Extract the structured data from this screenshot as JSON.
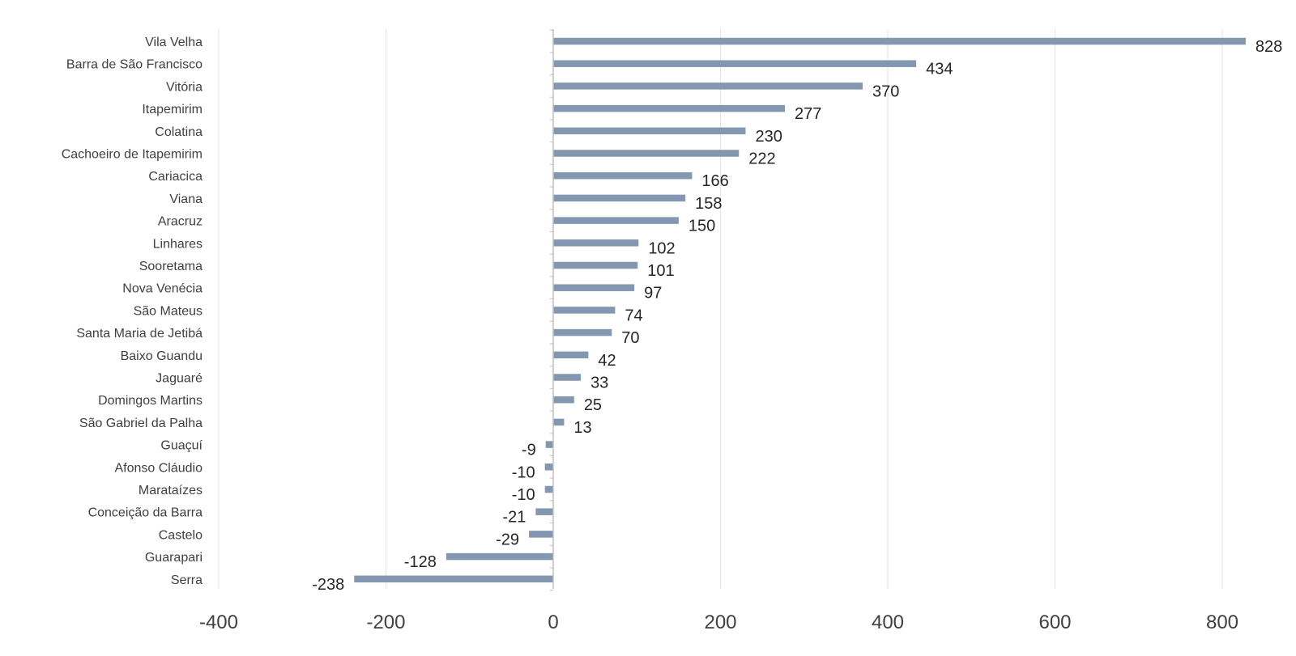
{
  "chart_data": {
    "type": "bar",
    "orientation": "horizontal",
    "title": "",
    "xlabel": "",
    "ylabel": "",
    "xlim": [
      -400,
      830
    ],
    "x_ticks": [
      -400,
      -200,
      0,
      200,
      400,
      600,
      800
    ],
    "x_tick_labels": [
      "-400",
      "-200",
      "0",
      "200",
      "400",
      "600",
      "800"
    ],
    "grid": "vertical",
    "legend": "none",
    "bar_color": "#8497b0",
    "categories": [
      "Vila Velha",
      "Barra de São Francisco",
      "Vitória",
      "Itapemirim",
      "Colatina",
      "Cachoeiro de Itapemirim",
      "Cariacica",
      "Viana",
      "Aracruz",
      "Linhares",
      "Sooretama",
      "Nova Venécia",
      "São Mateus",
      "Santa Maria de Jetibá",
      "Baixo Guandu",
      "Jaguaré",
      "Domingos Martins",
      "São Gabriel da Palha",
      "Guaçuí",
      "Afonso Cláudio",
      "Marataízes",
      "Conceição da Barra",
      "Castelo",
      "Guarapari",
      "Serra"
    ],
    "values": [
      828,
      434,
      370,
      277,
      230,
      222,
      166,
      158,
      150,
      102,
      101,
      97,
      74,
      70,
      42,
      33,
      25,
      13,
      -9,
      -10,
      -10,
      -21,
      -29,
      -128,
      -238
    ]
  }
}
